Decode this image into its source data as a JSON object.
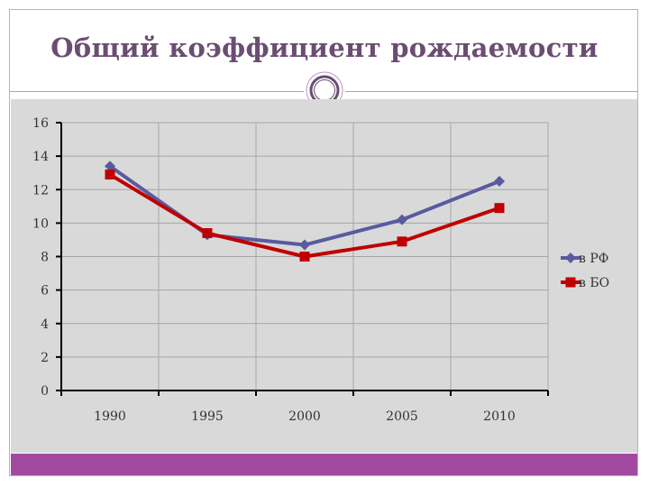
{
  "slide": {
    "title": "Общий коэффициент рождаемости"
  },
  "colors": {
    "accent": "#a24aa0",
    "title": "#6b4d72",
    "plot_background": "#d9d9d9"
  },
  "chart_data": {
    "type": "line",
    "title": "",
    "xlabel": "",
    "ylabel": "",
    "categories": [
      "1990",
      "1995",
      "2000",
      "2005",
      "2010"
    ],
    "series": [
      {
        "name": "в РФ",
        "values": [
          13.4,
          9.3,
          8.7,
          10.2,
          12.5
        ],
        "color": "#5a5aa0",
        "marker": "diamond"
      },
      {
        "name": "в БО",
        "values": [
          12.9,
          9.4,
          8.0,
          8.9,
          10.9
        ],
        "color": "#c00000",
        "marker": "square"
      }
    ],
    "ylim": [
      0,
      16
    ],
    "yticks": [
      0,
      2,
      4,
      6,
      8,
      10,
      12,
      14,
      16
    ],
    "grid": true,
    "legend": "right"
  }
}
